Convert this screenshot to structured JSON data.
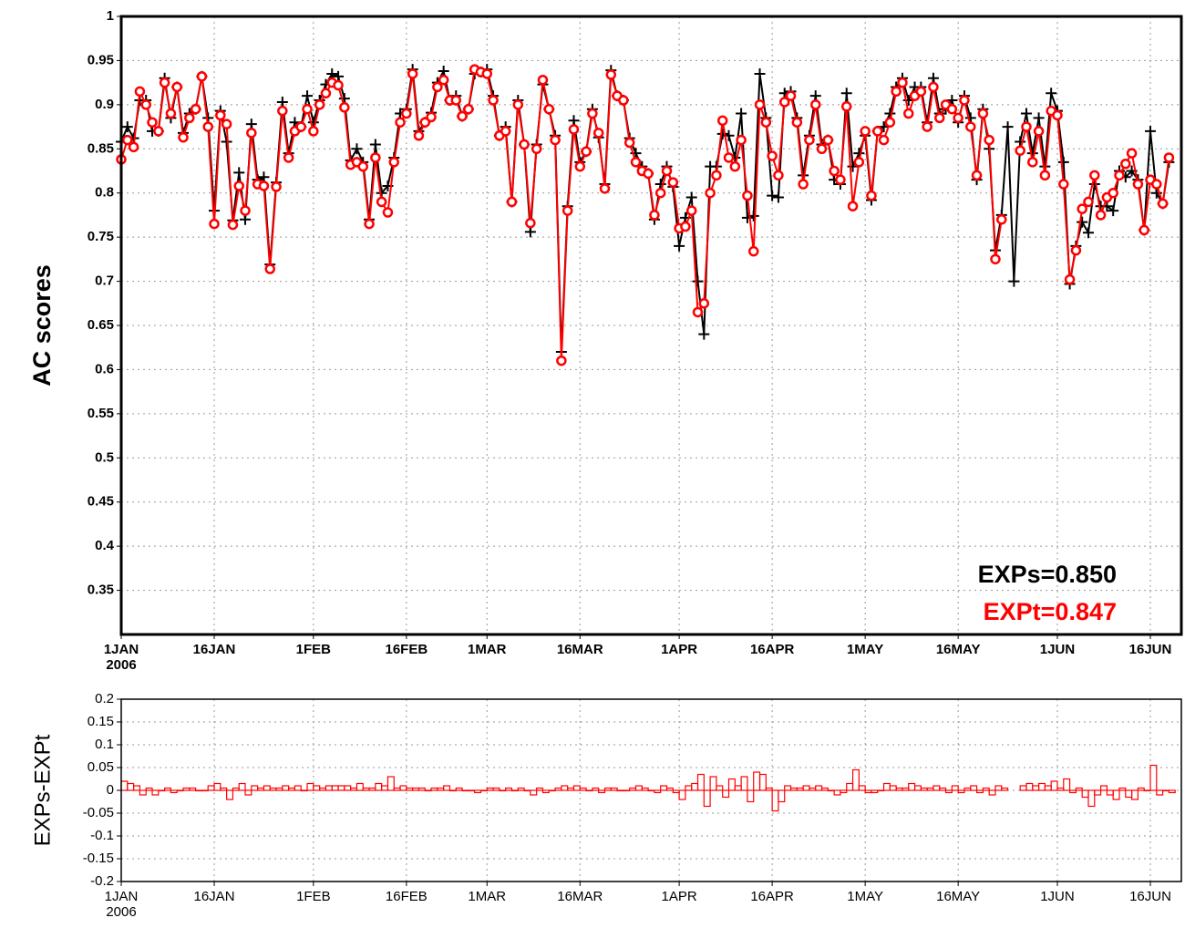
{
  "chart_data": [
    {
      "type": "line",
      "ylabel": "AC scores",
      "x": [
        "2006-01-01",
        "2006-01-02",
        "2006-01-03",
        "2006-01-04",
        "2006-01-05",
        "2006-01-06",
        "2006-01-07",
        "2006-01-08",
        "2006-01-09",
        "2006-01-10",
        "2006-01-11",
        "2006-01-12",
        "2006-01-13",
        "2006-01-14",
        "2006-01-15",
        "2006-01-16",
        "2006-01-17",
        "2006-01-18",
        "2006-01-19",
        "2006-01-20",
        "2006-01-21",
        "2006-01-22",
        "2006-01-23",
        "2006-01-24",
        "2006-01-25",
        "2006-01-26",
        "2006-01-27",
        "2006-01-28",
        "2006-01-29",
        "2006-01-30",
        "2006-01-31",
        "2006-02-01",
        "2006-02-02",
        "2006-02-03",
        "2006-02-04",
        "2006-02-05",
        "2006-02-06",
        "2006-02-07",
        "2006-02-08",
        "2006-02-09",
        "2006-02-10",
        "2006-02-11",
        "2006-02-12",
        "2006-02-13",
        "2006-02-14",
        "2006-02-15",
        "2006-02-16",
        "2006-02-17",
        "2006-02-18",
        "2006-02-19",
        "2006-02-20",
        "2006-02-21",
        "2006-02-22",
        "2006-02-23",
        "2006-02-24",
        "2006-02-25",
        "2006-02-26",
        "2006-02-27",
        "2006-02-28",
        "2006-03-01",
        "2006-03-02",
        "2006-03-03",
        "2006-03-04",
        "2006-03-05",
        "2006-03-06",
        "2006-03-07",
        "2006-03-08",
        "2006-03-09",
        "2006-03-10",
        "2006-03-11",
        "2006-03-12",
        "2006-03-13",
        "2006-03-14",
        "2006-03-15",
        "2006-03-16",
        "2006-03-17",
        "2006-03-18",
        "2006-03-19",
        "2006-03-20",
        "2006-03-21",
        "2006-03-22",
        "2006-03-23",
        "2006-03-24",
        "2006-03-25",
        "2006-03-26",
        "2006-03-27",
        "2006-03-28",
        "2006-03-29",
        "2006-03-30",
        "2006-03-31",
        "2006-04-01",
        "2006-04-02",
        "2006-04-03",
        "2006-04-04",
        "2006-04-05",
        "2006-04-06",
        "2006-04-07",
        "2006-04-08",
        "2006-04-09",
        "2006-04-10",
        "2006-04-11",
        "2006-04-12",
        "2006-04-13",
        "2006-04-14",
        "2006-04-15",
        "2006-04-16",
        "2006-04-17",
        "2006-04-18",
        "2006-04-19",
        "2006-04-20",
        "2006-04-21",
        "2006-04-22",
        "2006-04-23",
        "2006-04-24",
        "2006-04-25",
        "2006-04-26",
        "2006-04-27",
        "2006-04-28",
        "2006-04-29",
        "2006-04-30",
        "2006-05-01",
        "2006-05-02",
        "2006-05-03",
        "2006-05-04",
        "2006-05-05",
        "2006-05-06",
        "2006-05-07",
        "2006-05-08",
        "2006-05-09",
        "2006-05-10",
        "2006-05-11",
        "2006-05-12",
        "2006-05-13",
        "2006-05-14",
        "2006-05-15",
        "2006-05-16",
        "2006-05-17",
        "2006-05-18",
        "2006-05-19",
        "2006-05-20",
        "2006-05-21",
        "2006-05-22",
        "2006-05-23",
        "2006-05-24",
        "2006-05-25",
        "2006-05-26",
        "2006-05-27",
        "2006-05-28",
        "2006-05-29",
        "2006-05-30",
        "2006-05-31",
        "2006-06-01",
        "2006-06-02",
        "2006-06-03",
        "2006-06-04",
        "2006-06-05",
        "2006-06-06",
        "2006-06-07",
        "2006-06-08",
        "2006-06-09",
        "2006-06-10",
        "2006-06-11",
        "2006-06-12",
        "2006-06-13",
        "2006-06-14",
        "2006-06-15",
        "2006-06-16",
        "2006-06-17",
        "2006-06-18",
        "2006-06-19"
      ],
      "xlim": [
        "2006-01-01",
        "2006-06-21"
      ],
      "xticks": [
        {
          "value": "2006-01-01",
          "label": "1JAN"
        },
        {
          "value": "2006-01-16",
          "label": "16JAN"
        },
        {
          "value": "2006-02-01",
          "label": "1FEB"
        },
        {
          "value": "2006-02-16",
          "label": "16FEB"
        },
        {
          "value": "2006-03-01",
          "label": "1MAR"
        },
        {
          "value": "2006-03-16",
          "label": "16MAR"
        },
        {
          "value": "2006-04-01",
          "label": "1APR"
        },
        {
          "value": "2006-04-16",
          "label": "16APR"
        },
        {
          "value": "2006-05-01",
          "label": "1MAY"
        },
        {
          "value": "2006-05-16",
          "label": "16MAY"
        },
        {
          "value": "2006-06-01",
          "label": "1JUN"
        },
        {
          "value": "2006-06-16",
          "label": "16JUN"
        }
      ],
      "xtick_year": "2006",
      "ylim": [
        0.3,
        1
      ],
      "yticks": [
        0.35,
        0.4,
        0.45,
        0.5,
        0.55,
        0.6,
        0.65,
        0.7,
        0.75,
        0.8,
        0.85,
        0.9,
        0.95,
        1
      ],
      "grid": true,
      "series": [
        {
          "color": "#000000",
          "marker": "plus",
          "values": [
            0.858,
            0.875,
            0.862,
            0.905,
            0.905,
            0.87,
            0.87,
            0.93,
            0.885,
            0.92,
            0.868,
            0.89,
            0.895,
            0.932,
            0.885,
            0.78,
            0.893,
            0.858,
            0.769,
            0.823,
            0.77,
            0.878,
            0.815,
            0.818,
            0.719,
            0.812,
            0.903,
            0.845,
            0.88,
            0.875,
            0.91,
            0.88,
            0.905,
            0.923,
            0.935,
            0.932,
            0.907,
            0.837,
            0.85,
            0.835,
            0.77,
            0.855,
            0.8,
            0.808,
            0.84,
            0.89,
            0.895,
            0.94,
            0.87,
            0.88,
            0.891,
            0.925,
            0.938,
            0.905,
            0.91,
            0.887,
            0.895,
            0.935,
            0.937,
            0.94,
            0.91,
            0.865,
            0.875,
            0.79,
            0.905,
            0.855,
            0.756,
            0.855,
            0.923,
            0.895,
            0.865,
            0.62,
            0.785,
            0.882,
            0.835,
            0.847,
            0.895,
            0.863,
            0.81,
            0.939,
            0.91,
            0.905,
            0.862,
            0.845,
            0.83,
            0.822,
            0.77,
            0.81,
            0.83,
            0.807,
            0.74,
            0.772,
            0.795,
            0.7,
            0.64,
            0.83,
            0.83,
            0.867,
            0.865,
            0.84,
            0.89,
            0.772,
            0.774,
            0.935,
            0.885,
            0.797,
            0.795,
            0.913,
            0.915,
            0.885,
            0.82,
            0.865,
            0.91,
            0.855,
            0.86,
            0.815,
            0.81,
            0.913,
            0.83,
            0.845,
            0.865,
            0.792,
            0.87,
            0.875,
            0.89,
            0.92,
            0.93,
            0.905,
            0.92,
            0.92,
            0.88,
            0.93,
            0.89,
            0.895,
            0.905,
            0.88,
            0.91,
            0.885,
            0.815,
            0.895,
            0.85,
            0.735,
            0.775,
            0.875,
            0.7,
            0.858,
            0.89,
            0.845,
            0.885,
            0.83,
            0.913,
            0.893,
            0.835,
            0.697,
            0.74,
            0.767,
            0.755,
            0.81,
            0.785,
            0.785,
            0.78,
            0.825,
            0.818,
            0.825,
            0.815,
            0.758,
            0.87,
            0.8,
            0.788,
            0.835
          ]
        },
        {
          "color": "#ff0000",
          "marker": "circle",
          "values": [
            0.838,
            0.86,
            0.852,
            0.915,
            0.9,
            0.88,
            0.87,
            0.925,
            0.89,
            0.92,
            0.863,
            0.885,
            0.895,
            0.932,
            0.875,
            0.765,
            0.888,
            0.878,
            0.764,
            0.808,
            0.78,
            0.868,
            0.81,
            0.808,
            0.714,
            0.807,
            0.893,
            0.84,
            0.87,
            0.875,
            0.895,
            0.87,
            0.9,
            0.913,
            0.925,
            0.922,
            0.897,
            0.832,
            0.835,
            0.83,
            0.765,
            0.84,
            0.79,
            0.778,
            0.835,
            0.88,
            0.89,
            0.935,
            0.865,
            0.88,
            0.886,
            0.92,
            0.928,
            0.905,
            0.905,
            0.887,
            0.895,
            0.94,
            0.937,
            0.935,
            0.905,
            0.865,
            0.87,
            0.79,
            0.9,
            0.855,
            0.766,
            0.85,
            0.928,
            0.895,
            0.86,
            0.61,
            0.78,
            0.872,
            0.83,
            0.847,
            0.89,
            0.868,
            0.805,
            0.934,
            0.91,
            0.905,
            0.857,
            0.835,
            0.825,
            0.822,
            0.775,
            0.8,
            0.825,
            0.812,
            0.76,
            0.762,
            0.78,
            0.665,
            0.675,
            0.8,
            0.82,
            0.882,
            0.84,
            0.83,
            0.86,
            0.797,
            0.734,
            0.9,
            0.88,
            0.842,
            0.82,
            0.903,
            0.91,
            0.88,
            0.81,
            0.86,
            0.9,
            0.85,
            0.86,
            0.825,
            0.815,
            0.898,
            0.785,
            0.835,
            0.87,
            0.797,
            0.87,
            0.86,
            0.88,
            0.915,
            0.925,
            0.89,
            0.91,
            0.915,
            0.875,
            0.92,
            0.885,
            0.9,
            0.895,
            0.885,
            0.905,
            0.875,
            0.82,
            0.89,
            0.86,
            0.725,
            0.77,
            null,
            null,
            0.848,
            0.875,
            0.835,
            0.87,
            0.82,
            0.893,
            0.888,
            0.81,
            0.702,
            0.735,
            0.782,
            0.79,
            0.82,
            0.775,
            0.795,
            0.8,
            0.82,
            0.833,
            0.845,
            0.81,
            0.758,
            0.815,
            0.81,
            0.788,
            0.84
          ]
        }
      ],
      "annotations": [
        {
          "text": "EXPs=0.850",
          "color": "#000000"
        },
        {
          "text": "EXPt=0.847",
          "color": "#ff0000"
        }
      ]
    },
    {
      "type": "step",
      "ylabel": "EXPs-EXPt",
      "x": [
        "2006-01-01",
        "2006-01-02",
        "2006-01-03",
        "2006-01-04",
        "2006-01-05",
        "2006-01-06",
        "2006-01-07",
        "2006-01-08",
        "2006-01-09",
        "2006-01-10",
        "2006-01-11",
        "2006-01-12",
        "2006-01-13",
        "2006-01-14",
        "2006-01-15",
        "2006-01-16",
        "2006-01-17",
        "2006-01-18",
        "2006-01-19",
        "2006-01-20",
        "2006-01-21",
        "2006-01-22",
        "2006-01-23",
        "2006-01-24",
        "2006-01-25",
        "2006-01-26",
        "2006-01-27",
        "2006-01-28",
        "2006-01-29",
        "2006-01-30",
        "2006-01-31",
        "2006-02-01",
        "2006-02-02",
        "2006-02-03",
        "2006-02-04",
        "2006-02-05",
        "2006-02-06",
        "2006-02-07",
        "2006-02-08",
        "2006-02-09",
        "2006-02-10",
        "2006-02-11",
        "2006-02-12",
        "2006-02-13",
        "2006-02-14",
        "2006-02-15",
        "2006-02-16",
        "2006-02-17",
        "2006-02-18",
        "2006-02-19",
        "2006-02-20",
        "2006-02-21",
        "2006-02-22",
        "2006-02-23",
        "2006-02-24",
        "2006-02-25",
        "2006-02-26",
        "2006-02-27",
        "2006-02-28",
        "2006-03-01",
        "2006-03-02",
        "2006-03-03",
        "2006-03-04",
        "2006-03-05",
        "2006-03-06",
        "2006-03-07",
        "2006-03-08",
        "2006-03-09",
        "2006-03-10",
        "2006-03-11",
        "2006-03-12",
        "2006-03-13",
        "2006-03-14",
        "2006-03-15",
        "2006-03-16",
        "2006-03-17",
        "2006-03-18",
        "2006-03-19",
        "2006-03-20",
        "2006-03-21",
        "2006-03-22",
        "2006-03-23",
        "2006-03-24",
        "2006-03-25",
        "2006-03-26",
        "2006-03-27",
        "2006-03-28",
        "2006-03-29",
        "2006-03-30",
        "2006-03-31",
        "2006-04-01",
        "2006-04-02",
        "2006-04-03",
        "2006-04-04",
        "2006-04-05",
        "2006-04-06",
        "2006-04-07",
        "2006-04-08",
        "2006-04-09",
        "2006-04-10",
        "2006-04-11",
        "2006-04-12",
        "2006-04-13",
        "2006-04-14",
        "2006-04-15",
        "2006-04-16",
        "2006-04-17",
        "2006-04-18",
        "2006-04-19",
        "2006-04-20",
        "2006-04-21",
        "2006-04-22",
        "2006-04-23",
        "2006-04-24",
        "2006-04-25",
        "2006-04-26",
        "2006-04-27",
        "2006-04-28",
        "2006-04-29",
        "2006-04-30",
        "2006-05-01",
        "2006-05-02",
        "2006-05-03",
        "2006-05-04",
        "2006-05-05",
        "2006-05-06",
        "2006-05-07",
        "2006-05-08",
        "2006-05-09",
        "2006-05-10",
        "2006-05-11",
        "2006-05-12",
        "2006-05-13",
        "2006-05-14",
        "2006-05-15",
        "2006-05-16",
        "2006-05-17",
        "2006-05-18",
        "2006-05-19",
        "2006-05-20",
        "2006-05-21",
        "2006-05-22",
        "2006-05-23",
        "2006-05-24",
        "2006-05-25",
        "2006-05-26",
        "2006-05-27",
        "2006-05-28",
        "2006-05-29",
        "2006-05-30",
        "2006-05-31",
        "2006-06-01",
        "2006-06-02",
        "2006-06-03",
        "2006-06-04",
        "2006-06-05",
        "2006-06-06",
        "2006-06-07",
        "2006-06-08",
        "2006-06-09",
        "2006-06-10",
        "2006-06-11",
        "2006-06-12",
        "2006-06-13",
        "2006-06-14",
        "2006-06-15",
        "2006-06-16",
        "2006-06-17",
        "2006-06-18",
        "2006-06-19"
      ],
      "xlim": [
        "2006-01-01",
        "2006-06-21"
      ],
      "xticks": [
        {
          "value": "2006-01-01",
          "label": "1JAN"
        },
        {
          "value": "2006-01-16",
          "label": "16JAN"
        },
        {
          "value": "2006-02-01",
          "label": "1FEB"
        },
        {
          "value": "2006-02-16",
          "label": "16FEB"
        },
        {
          "value": "2006-03-01",
          "label": "1MAR"
        },
        {
          "value": "2006-03-16",
          "label": "16MAR"
        },
        {
          "value": "2006-04-01",
          "label": "1APR"
        },
        {
          "value": "2006-04-16",
          "label": "16APR"
        },
        {
          "value": "2006-05-01",
          "label": "1MAY"
        },
        {
          "value": "2006-05-16",
          "label": "16MAY"
        },
        {
          "value": "2006-06-01",
          "label": "1JUN"
        },
        {
          "value": "2006-06-16",
          "label": "16JUN"
        }
      ],
      "xtick_year": "2006",
      "ylim": [
        -0.2,
        0.2
      ],
      "yticks": [
        -0.2,
        -0.15,
        -0.1,
        -0.05,
        0,
        0.05,
        0.1,
        0.15,
        0.2
      ],
      "grid": true,
      "color": "#ff0000",
      "values": [
        0.02,
        0.015,
        0.01,
        -0.01,
        0.005,
        -0.01,
        0,
        0.005,
        -0.005,
        0,
        0.005,
        0.005,
        0,
        0,
        0.01,
        0.015,
        0.005,
        -0.02,
        0.005,
        0.015,
        -0.01,
        0.01,
        0.005,
        0.01,
        0.005,
        0.005,
        0.01,
        0.005,
        0.01,
        0,
        0.015,
        0.01,
        0.005,
        0.01,
        0.01,
        0.01,
        0.01,
        0.005,
        0.015,
        0.005,
        0.005,
        0.015,
        0.01,
        0.03,
        0.005,
        0.01,
        0.005,
        0.005,
        0.005,
        0,
        0.005,
        0.005,
        0.01,
        0,
        0.005,
        0,
        0,
        -0.005,
        0,
        0.005,
        0.005,
        0,
        0.005,
        0,
        0.005,
        0,
        -0.01,
        0.005,
        -0.005,
        0,
        0.005,
        0.01,
        0.005,
        0.01,
        0.005,
        0,
        0.005,
        -0.005,
        0.005,
        0.005,
        0,
        0,
        0.005,
        0.01,
        0.005,
        0,
        -0.005,
        0.01,
        0.005,
        -0.005,
        -0.02,
        0.01,
        0.015,
        0.035,
        -0.035,
        0.03,
        0.01,
        -0.015,
        0.025,
        0.01,
        0.03,
        -0.025,
        0.04,
        0.035,
        0.005,
        -0.045,
        -0.025,
        0.01,
        0.005,
        0.005,
        0.01,
        0.005,
        0.01,
        0.005,
        0,
        -0.01,
        -0.005,
        0.015,
        0.045,
        0.01,
        -0.005,
        -0.005,
        0,
        0.015,
        0.01,
        0.005,
        0.005,
        0.015,
        0.01,
        0.005,
        0.005,
        0.01,
        0.005,
        -0.005,
        0.01,
        -0.005,
        0.005,
        0.01,
        -0.005,
        0.005,
        -0.01,
        0.01,
        0.005,
        null,
        null,
        0.01,
        0.015,
        0.01,
        0.015,
        0.01,
        0.02,
        0.005,
        0.025,
        -0.005,
        0.005,
        -0.015,
        -0.035,
        -0.01,
        0.01,
        -0.01,
        -0.02,
        0.005,
        -0.015,
        -0.02,
        0.005,
        0,
        0.055,
        -0.01,
        0,
        -0.005
      ]
    }
  ]
}
